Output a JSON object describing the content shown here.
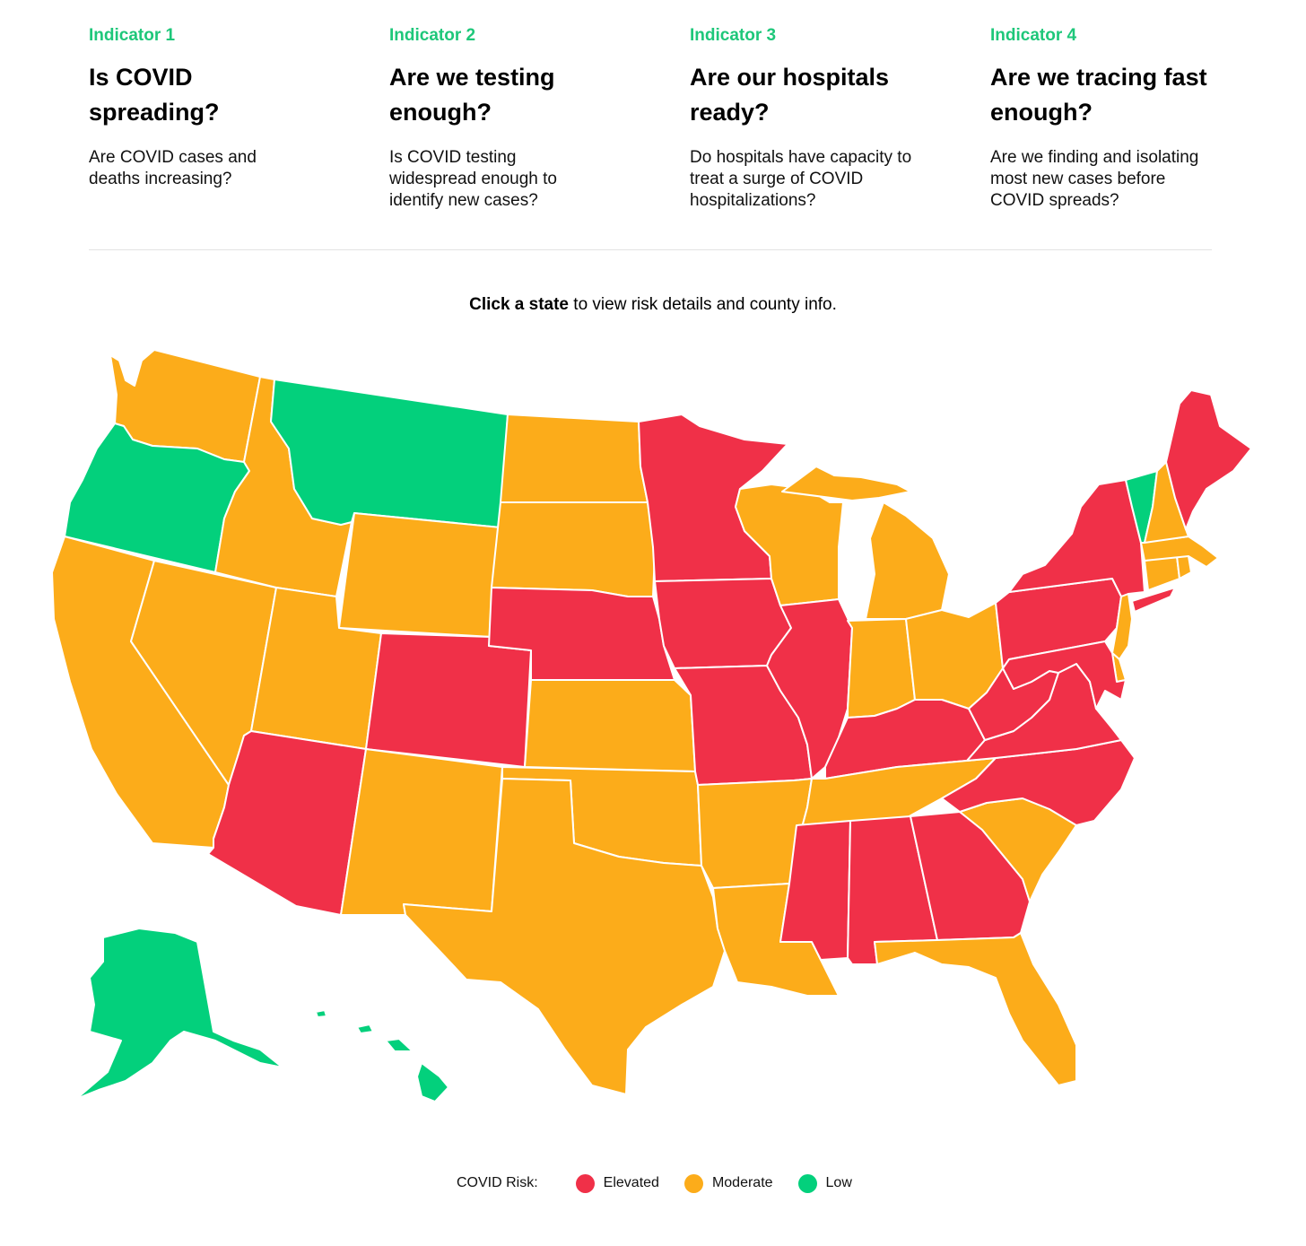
{
  "indicators": [
    {
      "label": "Indicator 1",
      "title": "Is COVID spreading?",
      "description": "Are COVID cases and deaths increasing?"
    },
    {
      "label": "Indicator 2",
      "title": "Are we testing enough?",
      "description": "Is COVID testing widespread enough to identify new cases?"
    },
    {
      "label": "Indicator 3",
      "title": "Are our hospitals ready?",
      "description": "Do hospitals have capacity to treat a surge of COVID hospitalizations?"
    },
    {
      "label": "Indicator 4",
      "title": "Are we tracing fast enough?",
      "description": "Are we finding and isolating most new cases before COVID spreads?"
    }
  ],
  "prompt": {
    "bold": "Click a state",
    "rest": " to view risk details and county info."
  },
  "legend": {
    "title": "COVID Risk:",
    "items": [
      {
        "key": "elevated",
        "label": "Elevated",
        "color": "#f03048"
      },
      {
        "key": "moderate",
        "label": "Moderate",
        "color": "#fcac1a"
      },
      {
        "key": "low",
        "label": "Low",
        "color": "#03d07c"
      }
    ]
  },
  "map": {
    "states": [
      {
        "code": "WA",
        "risk": "moderate"
      },
      {
        "code": "OR",
        "risk": "low"
      },
      {
        "code": "CA",
        "risk": "moderate"
      },
      {
        "code": "NV",
        "risk": "moderate"
      },
      {
        "code": "ID",
        "risk": "moderate"
      },
      {
        "code": "MT",
        "risk": "low"
      },
      {
        "code": "WY",
        "risk": "moderate"
      },
      {
        "code": "UT",
        "risk": "moderate"
      },
      {
        "code": "AZ",
        "risk": "elevated"
      },
      {
        "code": "CO",
        "risk": "elevated"
      },
      {
        "code": "NM",
        "risk": "moderate"
      },
      {
        "code": "ND",
        "risk": "moderate"
      },
      {
        "code": "SD",
        "risk": "moderate"
      },
      {
        "code": "NE",
        "risk": "elevated"
      },
      {
        "code": "KS",
        "risk": "moderate"
      },
      {
        "code": "OK",
        "risk": "moderate"
      },
      {
        "code": "TX",
        "risk": "moderate"
      },
      {
        "code": "MN",
        "risk": "elevated"
      },
      {
        "code": "IA",
        "risk": "elevated"
      },
      {
        "code": "MO",
        "risk": "elevated"
      },
      {
        "code": "AR",
        "risk": "moderate"
      },
      {
        "code": "LA",
        "risk": "moderate"
      },
      {
        "code": "WI",
        "risk": "moderate"
      },
      {
        "code": "IL",
        "risk": "elevated"
      },
      {
        "code": "MI",
        "risk": "moderate"
      },
      {
        "code": "IN",
        "risk": "moderate"
      },
      {
        "code": "OH",
        "risk": "moderate"
      },
      {
        "code": "KY",
        "risk": "elevated"
      },
      {
        "code": "TN",
        "risk": "moderate"
      },
      {
        "code": "MS",
        "risk": "elevated"
      },
      {
        "code": "AL",
        "risk": "elevated"
      },
      {
        "code": "GA",
        "risk": "elevated"
      },
      {
        "code": "FL",
        "risk": "moderate"
      },
      {
        "code": "SC",
        "risk": "moderate"
      },
      {
        "code": "NC",
        "risk": "elevated"
      },
      {
        "code": "VA",
        "risk": "elevated"
      },
      {
        "code": "WV",
        "risk": "elevated"
      },
      {
        "code": "PA",
        "risk": "elevated"
      },
      {
        "code": "NY",
        "risk": "elevated"
      },
      {
        "code": "NJ",
        "risk": "moderate"
      },
      {
        "code": "DE",
        "risk": "moderate"
      },
      {
        "code": "MD",
        "risk": "elevated"
      },
      {
        "code": "CT",
        "risk": "moderate"
      },
      {
        "code": "RI",
        "risk": "moderate"
      },
      {
        "code": "MA",
        "risk": "moderate"
      },
      {
        "code": "VT",
        "risk": "low"
      },
      {
        "code": "NH",
        "risk": "moderate"
      },
      {
        "code": "ME",
        "risk": "elevated"
      },
      {
        "code": "AK",
        "risk": "low"
      },
      {
        "code": "HI",
        "risk": "low"
      }
    ]
  }
}
